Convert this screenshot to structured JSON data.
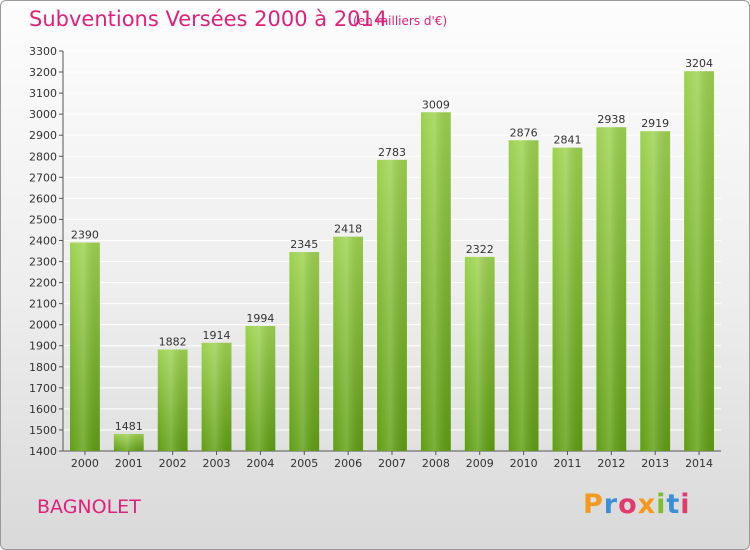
{
  "header": {
    "title": "Subventions Versées 2000 à 2014",
    "subtitle": "(en milliers d'€)"
  },
  "footer": {
    "location": "BAGNOLET",
    "logo": "Proxiti"
  },
  "colors": {
    "title": "#e0207a",
    "bar_top": "#9dd24f",
    "bar_bottom": "#5f9e12",
    "grid": "#ffffff"
  },
  "chart_data": {
    "type": "bar",
    "title": "Subventions Versées 2000 à 2014",
    "subtitle": "(en milliers d'€)",
    "xlabel": "",
    "ylabel": "",
    "categories": [
      "2000",
      "2001",
      "2002",
      "2003",
      "2004",
      "2005",
      "2006",
      "2007",
      "2008",
      "2009",
      "2010",
      "2011",
      "2012",
      "2013",
      "2014"
    ],
    "values": [
      2390,
      1481,
      1882,
      1914,
      1994,
      2345,
      2418,
      2783,
      3009,
      2322,
      2876,
      2841,
      2938,
      2919,
      3204
    ],
    "ylim": [
      1400,
      3300
    ],
    "yticks": [
      1400,
      1500,
      1600,
      1700,
      1800,
      1900,
      2000,
      2100,
      2200,
      2300,
      2400,
      2500,
      2600,
      2700,
      2800,
      2900,
      3000,
      3100,
      3200,
      3300
    ],
    "grid": true,
    "legend": "none"
  }
}
